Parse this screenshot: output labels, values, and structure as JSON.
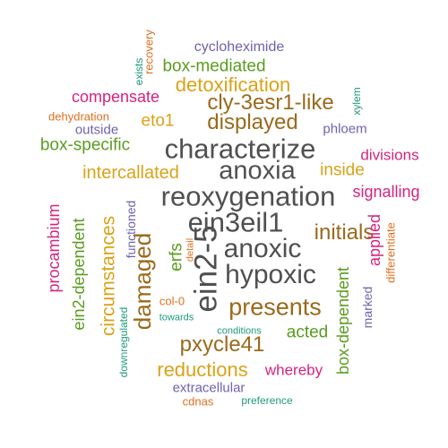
{
  "palette": {
    "orange": "#e07020",
    "purple": "#6e63ad",
    "pink": "#d6237f",
    "green": "#5a9c1f",
    "gold": "#d9a318",
    "brown": "#9a6a1c",
    "gray": "#505050",
    "teal": "#1f9a7a"
  },
  "words": [
    {
      "text": "characterize",
      "color": "gray"
    },
    {
      "text": "reoxygenation",
      "color": "gray"
    },
    {
      "text": "anoxia",
      "color": "gray"
    },
    {
      "text": "ein3eil1",
      "color": "gray"
    },
    {
      "text": "anoxic",
      "color": "gray"
    },
    {
      "text": "hypoxic",
      "color": "gray"
    },
    {
      "text": "ein2-5",
      "color": "gray"
    },
    {
      "text": "presents",
      "color": "brown"
    },
    {
      "text": "displayed",
      "color": "brown"
    },
    {
      "text": "cly-3esr1-like",
      "color": "brown"
    },
    {
      "text": "initials",
      "color": "brown"
    },
    {
      "text": "damaged",
      "color": "brown"
    },
    {
      "text": "pxycle41",
      "color": "brown"
    },
    {
      "text": "reductions",
      "color": "gold"
    },
    {
      "text": "detoxification",
      "color": "gold"
    },
    {
      "text": "eto1",
      "color": "gold"
    },
    {
      "text": "intercallated",
      "color": "gold"
    },
    {
      "text": "inside",
      "color": "gold"
    },
    {
      "text": "circumstances",
      "color": "gold"
    },
    {
      "text": "box-mediated",
      "color": "green"
    },
    {
      "text": "box-specific",
      "color": "green"
    },
    {
      "text": "ein2-dependent",
      "color": "green"
    },
    {
      "text": "box-dependent",
      "color": "green"
    },
    {
      "text": "acted",
      "color": "green"
    },
    {
      "text": "erfs",
      "color": "green"
    },
    {
      "text": "compensate",
      "color": "pink"
    },
    {
      "text": "signalling",
      "color": "pink"
    },
    {
      "text": "divisions",
      "color": "pink"
    },
    {
      "text": "whereby",
      "color": "pink"
    },
    {
      "text": "procambium",
      "color": "pink"
    },
    {
      "text": "applied",
      "color": "pink"
    },
    {
      "text": "cycloheximide",
      "color": "purple"
    },
    {
      "text": "outside",
      "color": "purple"
    },
    {
      "text": "phloem",
      "color": "purple"
    },
    {
      "text": "extracellular",
      "color": "purple"
    },
    {
      "text": "functioned",
      "color": "purple"
    },
    {
      "text": "marked",
      "color": "purple"
    },
    {
      "text": "downregulated",
      "color": "teal"
    },
    {
      "text": "towards",
      "color": "teal"
    },
    {
      "text": "conditions",
      "color": "teal"
    },
    {
      "text": "preference",
      "color": "teal"
    },
    {
      "text": "exists",
      "color": "teal"
    },
    {
      "text": "xylem",
      "color": "teal"
    },
    {
      "text": "recovery",
      "color": "orange"
    },
    {
      "text": "dehydration",
      "color": "orange"
    },
    {
      "text": "detail",
      "color": "orange"
    },
    {
      "text": "col-0",
      "color": "orange"
    },
    {
      "text": "cdnas",
      "color": "orange"
    },
    {
      "text": "differentiate",
      "color": "orange"
    }
  ]
}
